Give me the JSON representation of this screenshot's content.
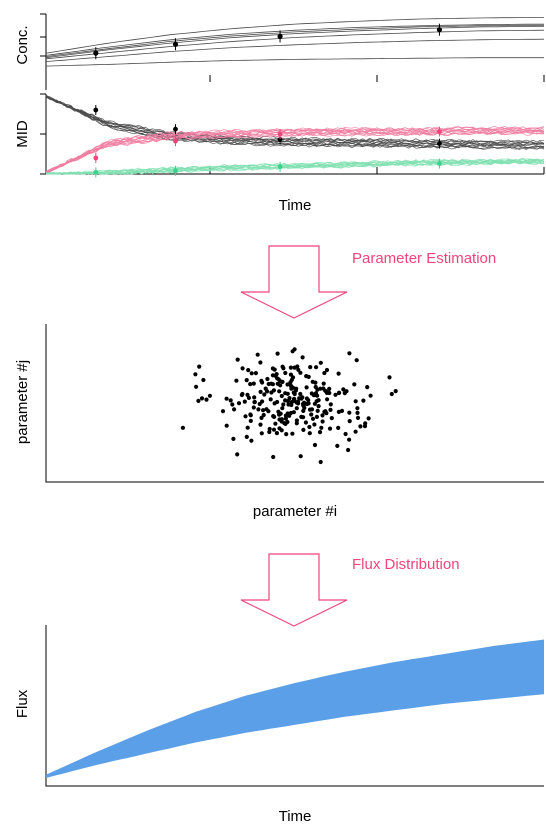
{
  "colors": {
    "black": "#000000",
    "gray_trace": "#4a4a4a",
    "pink": "#f0457c",
    "pink_light": "#f07aa0",
    "green": "#3fcf8e",
    "green_light": "#7fe0b0",
    "flux_band": "#5b9fe8",
    "step_label": "#f0457c",
    "arrow_stroke": "#f0457c"
  },
  "panel_conc": {
    "ylabel": "Conc."
  },
  "panel_mid": {
    "ylabel": "MID",
    "xlabel": "Time"
  },
  "step1": {
    "label": "Parameter Estimation"
  },
  "panel_scatter": {
    "ylabel": "parameter #j",
    "xlabel": "parameter #i"
  },
  "step2": {
    "label": "Flux Distribution"
  },
  "panel_flux": {
    "ylabel": "Flux",
    "xlabel": "Time"
  },
  "chart_data": [
    {
      "type": "line",
      "panel": "conc",
      "x": [
        0,
        0.125,
        0.25,
        0.375,
        0.5,
        0.625,
        0.75,
        0.875,
        1.0
      ],
      "series": [
        {
          "values": [
            0.07,
            0.1,
            0.14,
            0.17,
            0.19,
            0.2,
            0.21,
            0.22,
            0.22
          ]
        },
        {
          "values": [
            0.15,
            0.24,
            0.33,
            0.4,
            0.45,
            0.49,
            0.52,
            0.54,
            0.55
          ]
        },
        {
          "values": [
            0.2,
            0.31,
            0.42,
            0.51,
            0.58,
            0.63,
            0.67,
            0.7,
            0.71
          ]
        },
        {
          "values": [
            0.22,
            0.36,
            0.48,
            0.58,
            0.65,
            0.7,
            0.74,
            0.77,
            0.78
          ]
        },
        {
          "values": [
            0.24,
            0.38,
            0.51,
            0.61,
            0.68,
            0.73,
            0.77,
            0.79,
            0.8
          ]
        },
        {
          "values": [
            0.26,
            0.41,
            0.54,
            0.64,
            0.71,
            0.76,
            0.79,
            0.81,
            0.82
          ]
        },
        {
          "values": [
            0.3,
            0.48,
            0.63,
            0.74,
            0.82,
            0.87,
            0.91,
            0.93,
            0.94
          ]
        }
      ],
      "points": [
        {
          "x": 0.1,
          "y": 0.3
        },
        {
          "x": 0.26,
          "y": 0.46
        },
        {
          "x": 0.47,
          "y": 0.6
        },
        {
          "x": 0.79,
          "y": 0.72
        }
      ]
    },
    {
      "type": "line",
      "panel": "mid",
      "x": [
        0,
        0.125,
        0.25,
        0.375,
        0.5,
        0.625,
        0.75,
        0.875,
        1.0
      ],
      "bands": [
        {
          "name": "m0",
          "values": [
            0.97,
            0.62,
            0.47,
            0.42,
            0.4,
            0.39,
            0.38,
            0.37,
            0.36
          ],
          "spread": 0.09
        },
        {
          "name": "m1",
          "values": [
            0.02,
            0.38,
            0.48,
            0.5,
            0.52,
            0.53,
            0.53,
            0.54,
            0.54
          ],
          "spread": 0.08
        },
        {
          "name": "m2",
          "values": [
            0.0,
            0.02,
            0.05,
            0.08,
            0.1,
            0.12,
            0.14,
            0.15,
            0.16
          ],
          "spread": 0.05
        }
      ],
      "points": [
        {
          "band": "m0",
          "x": 0.1,
          "y": 0.8
        },
        {
          "band": "m0",
          "x": 0.26,
          "y": 0.56
        },
        {
          "band": "m0",
          "x": 0.47,
          "y": 0.43
        },
        {
          "band": "m0",
          "x": 0.79,
          "y": 0.38
        },
        {
          "band": "m1",
          "x": 0.1,
          "y": 0.2
        },
        {
          "band": "m1",
          "x": 0.26,
          "y": 0.41
        },
        {
          "band": "m1",
          "x": 0.47,
          "y": 0.5
        },
        {
          "band": "m1",
          "x": 0.79,
          "y": 0.53
        },
        {
          "band": "m2",
          "x": 0.1,
          "y": 0.02
        },
        {
          "band": "m2",
          "x": 0.26,
          "y": 0.04
        },
        {
          "band": "m2",
          "x": 0.47,
          "y": 0.09
        },
        {
          "band": "m2",
          "x": 0.79,
          "y": 0.13
        }
      ]
    },
    {
      "type": "scatter",
      "panel": "scatter",
      "center": [
        0.5,
        0.5
      ],
      "spread": [
        0.13,
        0.12
      ],
      "count": 260
    },
    {
      "type": "area",
      "panel": "flux",
      "x": [
        0,
        0.1,
        0.2,
        0.3,
        0.4,
        0.5,
        0.6,
        0.7,
        0.8,
        0.9,
        1.0
      ],
      "lower": [
        0.05,
        0.13,
        0.2,
        0.27,
        0.33,
        0.38,
        0.43,
        0.47,
        0.51,
        0.54,
        0.57
      ],
      "upper": [
        0.07,
        0.21,
        0.34,
        0.46,
        0.56,
        0.64,
        0.71,
        0.77,
        0.82,
        0.87,
        0.91
      ]
    }
  ]
}
